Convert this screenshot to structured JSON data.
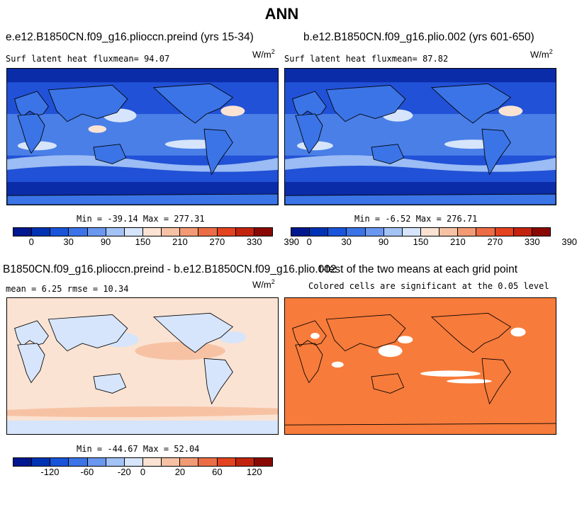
{
  "figure_title": "ANN",
  "chart_data": [
    {
      "type": "heatmap",
      "title": "e.e12.B1850CN.f09_g16.plioccn.preind (yrs 15-34)",
      "variable_label": "Surf latent heat flux",
      "mean_label": "mean=",
      "mean": "94.07",
      "units": "W/m",
      "units_exp": "2",
      "stats": "Min = -39.14 Max = 277.31",
      "colorbar_ticks": [
        "0",
        "30",
        "90",
        "150",
        "210",
        "270",
        "330",
        "390"
      ],
      "colorbar_colors": [
        "#00178f",
        "#0033b3",
        "#1a54d9",
        "#3b74e6",
        "#6a97ef",
        "#a3c2f6",
        "#d6e5fb",
        "#fbe3d3",
        "#f7c2a4",
        "#f29a74",
        "#ec6d45",
        "#e3431f",
        "#c2230e",
        "#8a0804"
      ]
    },
    {
      "type": "heatmap",
      "title": "b.e12.B1850CN.f09_g16.plio.002 (yrs 601-650)",
      "variable_label": "Surf latent heat flux",
      "mean_label": "mean=",
      "mean": "87.82",
      "units": "W/m",
      "units_exp": "2",
      "stats": "Min =  -6.52 Max = 276.71",
      "colorbar_ticks": [
        "0",
        "30",
        "90",
        "150",
        "210",
        "270",
        "330",
        "390"
      ],
      "colorbar_colors": [
        "#00178f",
        "#0033b3",
        "#1a54d9",
        "#3b74e6",
        "#6a97ef",
        "#a3c2f6",
        "#d6e5fb",
        "#fbe3d3",
        "#f7c2a4",
        "#f29a74",
        "#ec6d45",
        "#e3431f",
        "#c2230e",
        "#8a0804"
      ]
    },
    {
      "type": "heatmap",
      "title": "B1850CN.f09_g16.plioccn.preind - b.e12.B1850CN.f09_g16.plio.002",
      "mean_label": "mean =",
      "mean": "6.25",
      "rmse_label": "rmse =",
      "rmse": "10.34",
      "units": "W/m",
      "units_exp": "2",
      "stats": "Min = -44.67 Max =  52.04",
      "colorbar_ticks": [
        "-120",
        "-60",
        "-20",
        "0",
        "20",
        "60",
        "120"
      ],
      "colorbar_colors": [
        "#00178f",
        "#0033b3",
        "#1a54d9",
        "#3b74e6",
        "#6a97ef",
        "#a3c2f6",
        "#d6e5fb",
        "#fbe3d3",
        "#f7c2a4",
        "#f29a74",
        "#ec6d45",
        "#e3431f",
        "#c2230e",
        "#8a0804"
      ]
    },
    {
      "type": "heatmap",
      "title": "t-test of the two means at each grid point",
      "subtitle": "Colored cells are significant at the 0.05 level",
      "color": "#f77b3b"
    }
  ]
}
